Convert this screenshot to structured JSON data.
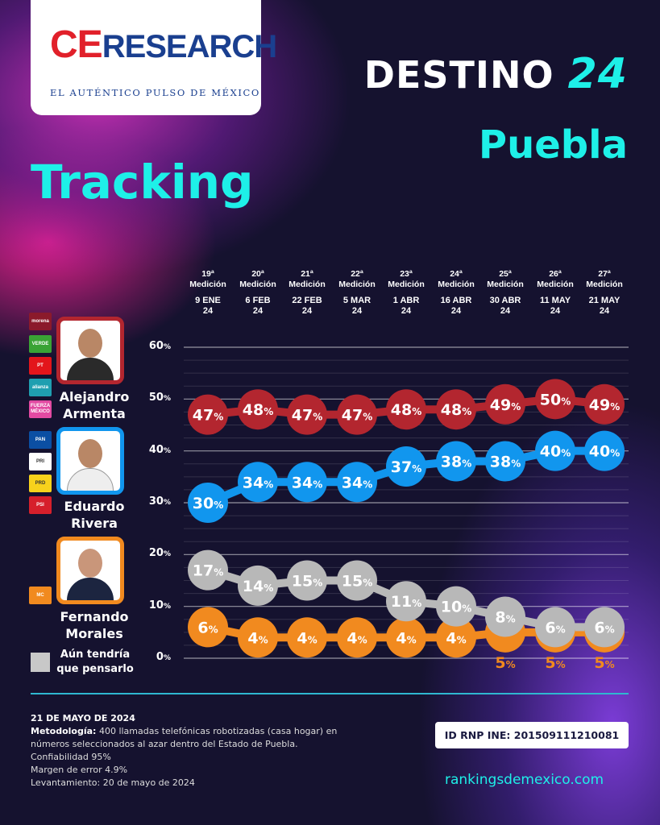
{
  "logo": {
    "ce": "CE",
    "research": "RESEARCH",
    "tagline": "EL AUTÉNTICO PULSO DE MÉXICO"
  },
  "header": {
    "title": "DESTINO",
    "title_number": "24",
    "state": "Puebla",
    "subtitle": "Tracking"
  },
  "chart_data": {
    "type": "line",
    "title": "Tracking",
    "categories": [
      {
        "round": "19ª",
        "label": "Medición",
        "date": "9 ENE",
        "year": "24"
      },
      {
        "round": "20ª",
        "label": "Medición",
        "date": "6 FEB",
        "year": "24"
      },
      {
        "round": "21ª",
        "label": "Medición",
        "date": "22 FEB",
        "year": "24"
      },
      {
        "round": "22ª",
        "label": "Medición",
        "date": "5 MAR",
        "year": "24"
      },
      {
        "round": "23ª",
        "label": "Medición",
        "date": "1 ABR",
        "year": "24"
      },
      {
        "round": "24ª",
        "label": "Medición",
        "date": "16 ABR",
        "year": "24"
      },
      {
        "round": "25ª",
        "label": "Medición",
        "date": "30 ABR",
        "year": "24"
      },
      {
        "round": "26ª",
        "label": "Medición",
        "date": "11 MAY",
        "year": "24"
      },
      {
        "round": "27ª",
        "label": "Medición",
        "date": "21 MAY",
        "year": "24"
      }
    ],
    "yticks": [
      0,
      10,
      20,
      30,
      40,
      50,
      60
    ],
    "ylim": [
      0,
      60
    ],
    "series": [
      {
        "name": "Alejandro Armenta",
        "color": "#b3262f",
        "values": [
          47,
          48,
          47,
          47,
          48,
          48,
          49,
          50,
          49
        ]
      },
      {
        "name": "Eduardo Rivera",
        "color": "#1196ee",
        "values": [
          30,
          34,
          34,
          34,
          37,
          38,
          38,
          40,
          40
        ]
      },
      {
        "name": "Aún tendría que pensarlo",
        "color": "#b8b8b8",
        "values": [
          17,
          14,
          15,
          15,
          11,
          10,
          8,
          6,
          6
        ]
      },
      {
        "name": "Fernando Morales",
        "color": "#f18a1f",
        "values": [
          6,
          4,
          4,
          4,
          4,
          4,
          5,
          5,
          5
        ]
      }
    ]
  },
  "candidates": [
    {
      "first": "Alejandro",
      "last": "Armenta",
      "parties": [
        "morena",
        "VERDE",
        "PT",
        "alianza",
        "FUERZA MÉXICO"
      ]
    },
    {
      "first": "Eduardo",
      "last": "Rivera",
      "parties": [
        "PAN",
        "PRI",
        "PRD",
        "PSI"
      ]
    },
    {
      "first": "Fernando",
      "last": "Morales",
      "parties": [
        "MC"
      ]
    }
  ],
  "undecided": {
    "line1": "Aún tendría",
    "line2": "que pensarlo"
  },
  "footer": {
    "date": "21 DE MAYO DE 2024",
    "method_label": "Metodología:",
    "method": " 400 llamadas telefónicas robotizadas (casa hogar) en números seleccionados al azar dentro del Estado de Puebla.",
    "confidence": "Confiabilidad 95%",
    "margin": "Margen de error 4.9%",
    "fieldwork": "Levantamiento: 20 de mayo de 2024",
    "rnp": "ID RNP INE:  201509111210081",
    "url": "rankingsdemexico.com"
  }
}
